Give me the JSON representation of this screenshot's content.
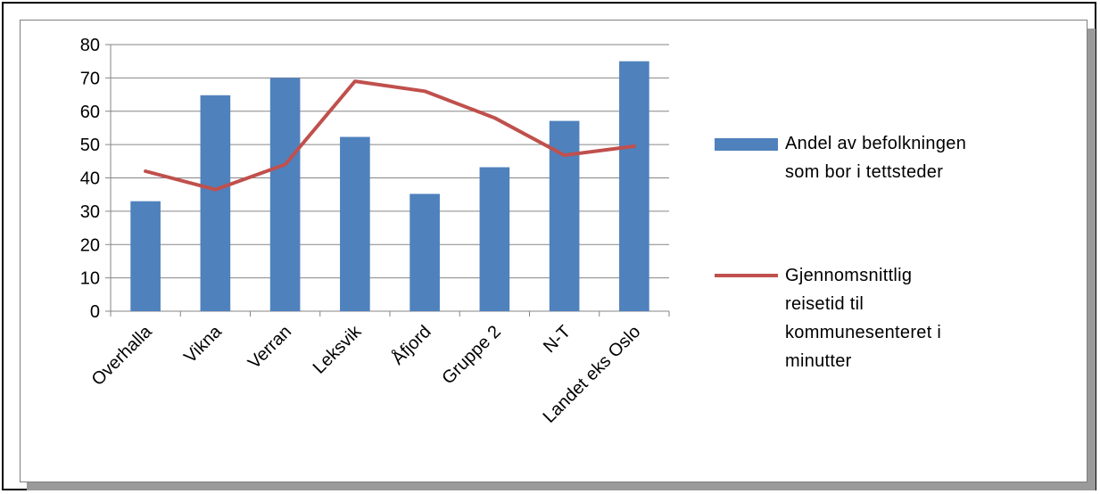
{
  "chart_data": {
    "type": "bar",
    "categories": [
      "Overhalla",
      "Vikna",
      "Verran",
      "Leksvik",
      "Åfjord",
      "Gruppe 2",
      "N-T",
      "Landet eks Oslo"
    ],
    "series": [
      {
        "name": "Andel av befolkningen som bor i tettsteder",
        "type": "bar",
        "color": "#4f81bd",
        "values": [
          33,
          64.8,
          70,
          52.3,
          35.2,
          43.2,
          57.1,
          75
        ]
      },
      {
        "name": "Gjennomsnittlig reisetid til kommunesenteret i minutter",
        "type": "line",
        "color": "#c0504d",
        "values": [
          42,
          36.5,
          44,
          69,
          66,
          58,
          46.8,
          49.5
        ]
      }
    ],
    "yticks": [
      "0",
      "10",
      "20",
      "30",
      "40",
      "50",
      "60",
      "70",
      "80"
    ],
    "ylim": [
      0,
      80
    ],
    "grid": true,
    "legend": "right",
    "title": "",
    "xlabel": "",
    "ylabel": ""
  },
  "legend": {
    "bar_label": "Andel av befolkningen\nsom bor i tettsteder",
    "line_label": "Gjennomsnittlig\nreisetid til\nkommunesenteret i\nminutter"
  }
}
